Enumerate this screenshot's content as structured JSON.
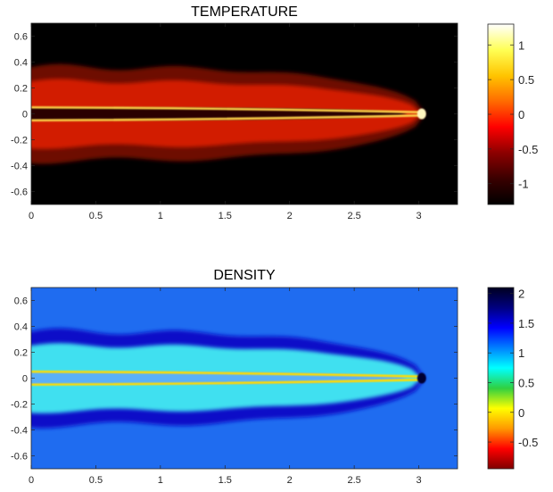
{
  "chart_data": [
    {
      "type": "heatmap",
      "title": "TEMPERATURE",
      "xlabel": "",
      "ylabel": "",
      "xlim": [
        0,
        3.3
      ],
      "ylim": [
        -0.7,
        0.7
      ],
      "x_ticks": [
        0,
        0.5,
        1,
        1.5,
        2,
        2.5,
        3
      ],
      "x_tick_labels": [
        "0",
        "0.5",
        "1",
        "1.5",
        "2",
        "2.5",
        "3"
      ],
      "y_ticks": [
        0.6,
        0.4,
        0.2,
        0,
        -0.2,
        -0.4,
        -0.6
      ],
      "y_tick_labels": [
        "0.6",
        "0.4",
        "0.2",
        "0",
        "-0.2",
        "-0.4",
        "-0.6"
      ],
      "colormap": "hot",
      "colorbar": {
        "range": [
          -1.3,
          1.3
        ],
        "ticks": [
          1,
          0.5,
          0,
          -0.5,
          -1
        ],
        "tick_labels": [
          "1",
          "0.5",
          "0",
          "-0.5",
          "-1"
        ],
        "stops": [
          "#000000",
          "#3a0000",
          "#8c0000",
          "#ff0000",
          "#ff6a00",
          "#ffc400",
          "#ffff55",
          "#ffffff"
        ]
      },
      "field": {
        "background": "#000000",
        "outer_color": "#6e0d00",
        "middle_color": "#d21c00",
        "core_color": "#2a0000",
        "shear_layer_color": "#ffd24a",
        "tip_color": "#fff8c0",
        "jet_tip_x": 3.05,
        "outer_half_width": 0.36,
        "shear_layer_y": 0.05
      }
    },
    {
      "type": "heatmap",
      "title": "DENSITY",
      "xlabel": "",
      "ylabel": "",
      "xlim": [
        0,
        3.3
      ],
      "ylim": [
        -0.7,
        0.7
      ],
      "x_ticks": [
        0,
        0.5,
        1,
        1.5,
        2,
        2.5,
        3
      ],
      "x_tick_labels": [
        "0",
        "0.5",
        "1",
        "1.5",
        "2",
        "2.5",
        "3"
      ],
      "y_ticks": [
        0.6,
        0.4,
        0.2,
        0,
        -0.2,
        -0.4,
        -0.6
      ],
      "y_tick_labels": [
        "0.6",
        "0.4",
        "0.2",
        "0",
        "-0.2",
        "-0.4",
        "-0.6"
      ],
      "colormap": "jet-reversed",
      "colorbar": {
        "range": [
          -0.95,
          2.1
        ],
        "ticks": [
          2,
          1.5,
          1,
          0.5,
          0,
          -0.5
        ],
        "tick_labels": [
          "2",
          "1.5",
          "1",
          "0.5",
          "0",
          "-0.5"
        ],
        "stops": [
          "#7f0000",
          "#ff0000",
          "#ff9900",
          "#ffff00",
          "#30d040",
          "#00ffff",
          "#0080ff",
          "#0000ff",
          "#00007f",
          "#000020"
        ]
      },
      "field": {
        "background": "#1f6cf0",
        "outer_color": "#0a10c8",
        "middle_color": "#3fe0f0",
        "core_color": "#5ab0f8",
        "shear_layer_color": "#ffdd00",
        "tip_color": "#000030",
        "jet_tip_x": 3.05,
        "outer_half_width": 0.36,
        "shear_layer_y": 0.05
      }
    }
  ]
}
